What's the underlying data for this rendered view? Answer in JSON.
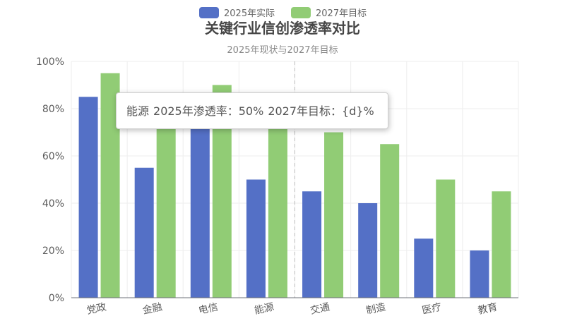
{
  "chart_data": {
    "type": "bar",
    "title": "关键行业信创渗透率对比",
    "subtitle": "2025年现状与2027年目标",
    "categories": [
      "党政",
      "金融",
      "电信",
      "能源",
      "交通",
      "制造",
      "医疗",
      "教育"
    ],
    "series": [
      {
        "name": "2025年实际",
        "values": [
          85,
          55,
          75,
          50,
          45,
          40,
          25,
          20
        ],
        "color": "#5470c6"
      },
      {
        "name": "2027年目标",
        "values": [
          95,
          80,
          90,
          80,
          70,
          65,
          50,
          45
        ],
        "color": "#91cc75"
      }
    ],
    "y_unit": "%",
    "ylim": [
      0,
      100
    ],
    "y_ticks": [
      0,
      20,
      40,
      60,
      80,
      100
    ],
    "y_tick_labels": [
      "0%",
      "20%",
      "40%",
      "60%",
      "80%",
      "100%"
    ],
    "grid": true,
    "legend_position": "top-center",
    "hover_category": "能源"
  },
  "tooltip": {
    "category": "能源",
    "actual_text": "2025年渗透率：50%",
    "target_text": "2027年目标：{d}%"
  }
}
